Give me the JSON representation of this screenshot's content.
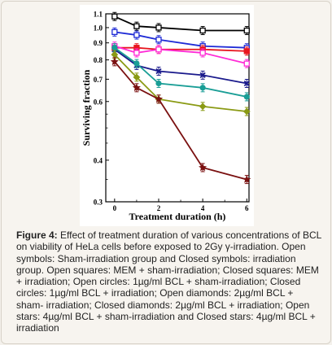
{
  "chart_data": {
    "type": "line",
    "xlabel": "Treatment duration (h)",
    "ylabel": "Surviving fraction",
    "y_scale": "log",
    "ylim": [
      0.3,
      1.1
    ],
    "xlim": [
      -0.4,
      6.1
    ],
    "x_ticks": [
      0,
      2,
      4,
      6
    ],
    "y_ticks": [
      "1.1",
      "1.0",
      "0.9",
      "0.8",
      "0.7",
      "0.6",
      "0.4",
      "0.3"
    ],
    "y_tick_values": [
      1.1,
      1.0,
      0.9,
      0.8,
      0.7,
      0.6,
      0.4,
      0.3
    ],
    "x": [
      0,
      1,
      2,
      4,
      6
    ],
    "series": [
      {
        "values": [
          1.08,
          1.01,
          1.0,
          0.98,
          0.98
        ],
        "color": "#000000",
        "marker": "square",
        "filled": false
      },
      {
        "values": [
          0.97,
          0.95,
          0.92,
          0.88,
          0.87
        ],
        "color": "#1f2bd6",
        "marker": "square",
        "filled": false
      },
      {
        "values": [
          0.87,
          0.87,
          0.86,
          0.86,
          0.85
        ],
        "color": "#e8161f",
        "marker": "square",
        "filled": true
      },
      {
        "values": [
          0.88,
          0.84,
          0.86,
          0.84,
          0.78
        ],
        "color": "#ff2bd6",
        "marker": "square",
        "filled": false
      },
      {
        "values": [
          0.86,
          0.77,
          0.74,
          0.72,
          0.68
        ],
        "color": "#1a1a8c",
        "marker": "x",
        "filled": true
      },
      {
        "values": [
          0.87,
          0.78,
          0.68,
          0.66,
          0.62
        ],
        "color": "#1a9e96",
        "marker": "circle",
        "filled": true
      },
      {
        "values": [
          0.83,
          0.71,
          0.61,
          0.58,
          0.56
        ],
        "color": "#8a9a14",
        "marker": "diamond",
        "filled": true
      },
      {
        "values": [
          0.79,
          0.66,
          0.61,
          0.38,
          0.35
        ],
        "color": "#7a1010",
        "marker": "star",
        "filled": true
      }
    ]
  },
  "caption": {
    "label": "Figure 4:",
    "text": " Effect of treatment duration of various concentrations of BCL on viability of HeLa cells before exposed to 2Gy γ-irradiation. Open symbols: Sham-irradiation group and Closed symbols: irradiation group. Open squares: MEM + sham-irradiation; Closed squares: MEM + irradiation; Open circles: 1µg/ml BCL + sham-irradiation; Closed circles: 1µg/ml BCL + irradiation; Open diamonds: 2µg/ml BCL + sham- irradiation; Closed diamonds: 2µg/ml BCL + irradiation; Open stars: 4µg/ml BCL + sham-irradiation and Closed stars: 4µg/ml BCL + irradiation"
  }
}
